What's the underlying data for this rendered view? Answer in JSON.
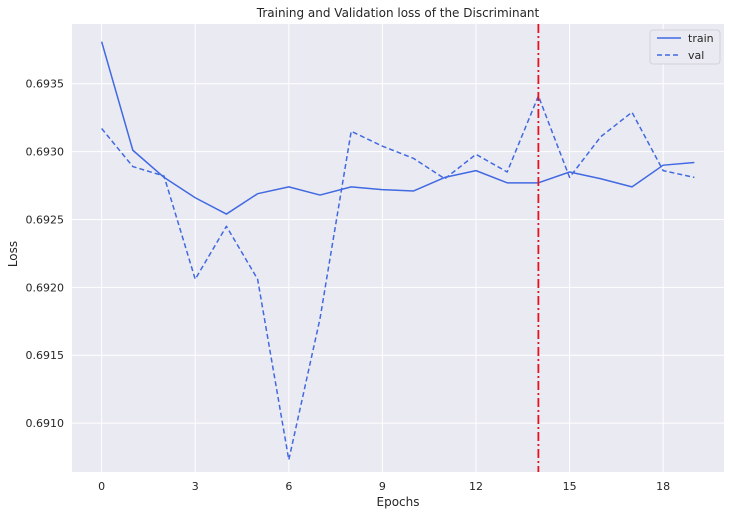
{
  "chart_data": {
    "type": "line",
    "title": "Training and Validation loss of the Discriminant",
    "xlabel": "Epochs",
    "ylabel": "Loss",
    "x": [
      0,
      1,
      2,
      3,
      4,
      5,
      6,
      7,
      8,
      9,
      10,
      11,
      12,
      13,
      14,
      15,
      16,
      17,
      18,
      19
    ],
    "xlim": [
      -0.95,
      19.95
    ],
    "ylim": [
      0.69064,
      0.69394
    ],
    "xticks": [
      0,
      3,
      6,
      9,
      12,
      15,
      18
    ],
    "yticks": [
      0.691,
      0.6915,
      0.692,
      0.6925,
      0.693,
      0.6935
    ],
    "ytick_labels": [
      "0.6910",
      "0.6915",
      "0.6920",
      "0.6925",
      "0.6930",
      "0.6935"
    ],
    "grid": true,
    "background": "#eaeaf2",
    "grid_color": "#ffffff",
    "legend_position": "top-right",
    "series": [
      {
        "name": "train",
        "style": "solid",
        "color": "#4169e1",
        "values": [
          0.69381,
          0.69301,
          0.69281,
          0.69266,
          0.69254,
          0.69269,
          0.69274,
          0.69268,
          0.69274,
          0.69272,
          0.69271,
          0.69281,
          0.69286,
          0.69277,
          0.69277,
          0.69285,
          0.6928,
          0.69274,
          0.6929,
          0.69292
        ]
      },
      {
        "name": "val",
        "style": "dashed",
        "color": "#4169e1",
        "values": [
          0.69317,
          0.69289,
          0.69282,
          0.69206,
          0.69245,
          0.69206,
          0.69073,
          0.69177,
          0.69315,
          0.69304,
          0.69295,
          0.6928,
          0.69298,
          0.69285,
          0.69341,
          0.69281,
          0.69311,
          0.69329,
          0.69286,
          0.69281
        ]
      }
    ],
    "vline": {
      "x": 14,
      "color": "#e8111d",
      "style": "dashdot"
    }
  }
}
